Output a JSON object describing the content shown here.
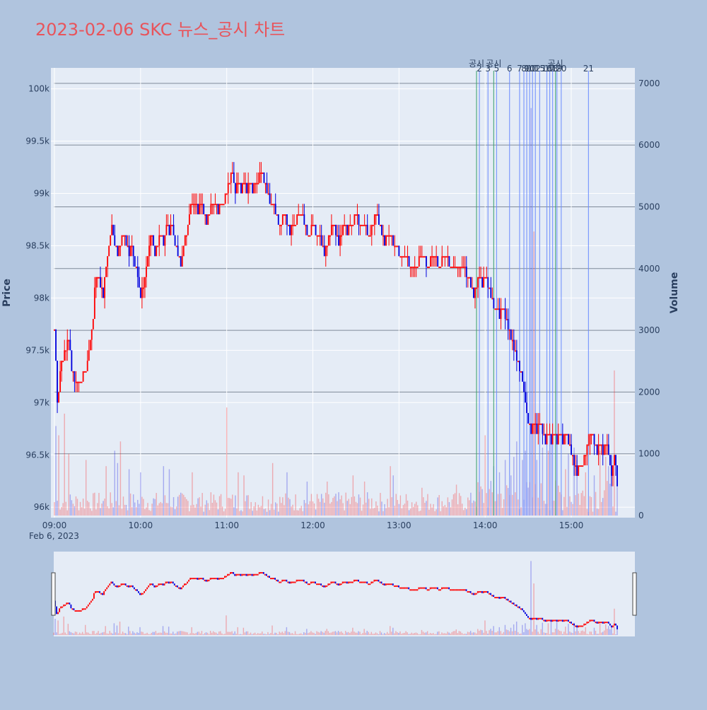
{
  "title": "2023-02-06 SKC 뉴스_공시 차트",
  "colors": {
    "background": "#b0c4de",
    "plot_bg": "#e5ecf6",
    "title": "#e8545b",
    "up": "#ff0000",
    "down": "#0000dd",
    "marker_num": "#6b8cff",
    "marker_disclosure": "#3aa06e",
    "axis_text": "#2a3f5f"
  },
  "chart_data": {
    "type": "candlestick",
    "title": "2023-02-06 SKC 뉴스_공시 차트",
    "ylabel": "Price",
    "y2label": "Volume",
    "xlabel_date": "Feb 6, 2023",
    "price_axis": {
      "range": [
        95900,
        100200
      ],
      "tick_values": [
        96000,
        96500,
        97000,
        97500,
        98000,
        98500,
        99000,
        99500,
        100000
      ],
      "tick_labels": [
        "96k",
        "96.5k",
        "97k",
        "97.5k",
        "98k",
        "98.5k",
        "99k",
        "99.5k",
        "100k"
      ]
    },
    "volume_axis": {
      "range": [
        0,
        7250
      ],
      "tick_values": [
        0,
        1000,
        2000,
        3000,
        4000,
        5000,
        6000,
        7000
      ],
      "tick_labels": [
        "0",
        "1000",
        "2000",
        "3000",
        "4000",
        "5000",
        "6000",
        "7000"
      ]
    },
    "time_axis": {
      "tick_labels": [
        "09:00",
        "10:00",
        "11:00",
        "12:00",
        "13:00",
        "14:00",
        "15:00"
      ],
      "tick_minutes": [
        0,
        60,
        120,
        180,
        240,
        300,
        360
      ],
      "end_minute": 392
    },
    "price_path": [
      [
        0,
        97700
      ],
      [
        2,
        97000
      ],
      [
        5,
        97400
      ],
      [
        10,
        97600
      ],
      [
        12,
        97300
      ],
      [
        14,
        97200
      ],
      [
        18,
        97200
      ],
      [
        22,
        97300
      ],
      [
        25,
        97600
      ],
      [
        27,
        97800
      ],
      [
        28,
        98100
      ],
      [
        30,
        98200
      ],
      [
        32,
        98100
      ],
      [
        34,
        98000
      ],
      [
        36,
        98300
      ],
      [
        38,
        98500
      ],
      [
        40,
        98700
      ],
      [
        42,
        98500
      ],
      [
        44,
        98400
      ],
      [
        46,
        98500
      ],
      [
        48,
        98600
      ],
      [
        50,
        98500
      ],
      [
        52,
        98400
      ],
      [
        54,
        98500
      ],
      [
        56,
        98300
      ],
      [
        58,
        98200
      ],
      [
        60,
        98000
      ],
      [
        62,
        98100
      ],
      [
        64,
        98300
      ],
      [
        66,
        98500
      ],
      [
        68,
        98600
      ],
      [
        70,
        98400
      ],
      [
        72,
        98500
      ],
      [
        74,
        98600
      ],
      [
        76,
        98500
      ],
      [
        78,
        98700
      ],
      [
        80,
        98600
      ],
      [
        82,
        98700
      ],
      [
        84,
        98500
      ],
      [
        86,
        98400
      ],
      [
        88,
        98300
      ],
      [
        90,
        98500
      ],
      [
        92,
        98600
      ],
      [
        94,
        98800
      ],
      [
        96,
        98900
      ],
      [
        98,
        98900
      ],
      [
        100,
        98800
      ],
      [
        102,
        98900
      ],
      [
        104,
        98800
      ],
      [
        106,
        98700
      ],
      [
        108,
        98800
      ],
      [
        110,
        98900
      ],
      [
        112,
        98900
      ],
      [
        114,
        98800
      ],
      [
        116,
        98900
      ],
      [
        118,
        98900
      ],
      [
        120,
        99000
      ],
      [
        122,
        99100
      ],
      [
        124,
        99200
      ],
      [
        126,
        99000
      ],
      [
        128,
        99100
      ],
      [
        130,
        99000
      ],
      [
        132,
        99100
      ],
      [
        134,
        99000
      ],
      [
        136,
        99100
      ],
      [
        138,
        99000
      ],
      [
        140,
        99100
      ],
      [
        142,
        99100
      ],
      [
        144,
        99200
      ],
      [
        146,
        99100
      ],
      [
        148,
        99000
      ],
      [
        150,
        98900
      ],
      [
        152,
        98900
      ],
      [
        154,
        98800
      ],
      [
        156,
        98700
      ],
      [
        158,
        98700
      ],
      [
        160,
        98800
      ],
      [
        162,
        98700
      ],
      [
        164,
        98600
      ],
      [
        166,
        98700
      ],
      [
        168,
        98700
      ],
      [
        170,
        98800
      ],
      [
        172,
        98800
      ],
      [
        174,
        98700
      ],
      [
        176,
        98600
      ],
      [
        178,
        98600
      ],
      [
        180,
        98700
      ],
      [
        182,
        98600
      ],
      [
        184,
        98600
      ],
      [
        186,
        98500
      ],
      [
        188,
        98400
      ],
      [
        190,
        98500
      ],
      [
        192,
        98600
      ],
      [
        194,
        98700
      ],
      [
        196,
        98600
      ],
      [
        198,
        98500
      ],
      [
        200,
        98600
      ],
      [
        202,
        98700
      ],
      [
        204,
        98600
      ],
      [
        206,
        98700
      ],
      [
        208,
        98700
      ],
      [
        210,
        98800
      ],
      [
        212,
        98700
      ],
      [
        214,
        98700
      ],
      [
        216,
        98700
      ],
      [
        218,
        98600
      ],
      [
        220,
        98600
      ],
      [
        222,
        98700
      ],
      [
        224,
        98800
      ],
      [
        226,
        98700
      ],
      [
        228,
        98600
      ],
      [
        230,
        98500
      ],
      [
        232,
        98600
      ],
      [
        234,
        98600
      ],
      [
        236,
        98500
      ],
      [
        238,
        98500
      ],
      [
        240,
        98400
      ],
      [
        244,
        98400
      ],
      [
        248,
        98300
      ],
      [
        252,
        98300
      ],
      [
        256,
        98400
      ],
      [
        260,
        98300
      ],
      [
        264,
        98400
      ],
      [
        268,
        98300
      ],
      [
        272,
        98400
      ],
      [
        276,
        98300
      ],
      [
        280,
        98300
      ],
      [
        284,
        98300
      ],
      [
        288,
        98200
      ],
      [
        290,
        98100
      ],
      [
        292,
        98000
      ],
      [
        294,
        98100
      ],
      [
        296,
        98200
      ],
      [
        298,
        98100
      ],
      [
        300,
        98200
      ],
      [
        302,
        98100
      ],
      [
        304,
        98000
      ],
      [
        306,
        97900
      ],
      [
        308,
        97900
      ],
      [
        310,
        97800
      ],
      [
        312,
        97900
      ],
      [
        314,
        97800
      ],
      [
        316,
        97700
      ],
      [
        318,
        97600
      ],
      [
        320,
        97500
      ],
      [
        322,
        97400
      ],
      [
        324,
        97300
      ],
      [
        326,
        97200
      ],
      [
        328,
        97000
      ],
      [
        330,
        96800
      ],
      [
        332,
        96700
      ],
      [
        334,
        96800
      ],
      [
        336,
        96700
      ],
      [
        338,
        96800
      ],
      [
        340,
        96700
      ],
      [
        342,
        96600
      ],
      [
        344,
        96700
      ],
      [
        346,
        96600
      ],
      [
        348,
        96700
      ],
      [
        350,
        96600
      ],
      [
        352,
        96700
      ],
      [
        354,
        96600
      ],
      [
        356,
        96700
      ],
      [
        358,
        96600
      ],
      [
        360,
        96500
      ],
      [
        362,
        96400
      ],
      [
        364,
        96300
      ],
      [
        366,
        96400
      ],
      [
        368,
        96400
      ],
      [
        370,
        96500
      ],
      [
        372,
        96600
      ],
      [
        374,
        96700
      ],
      [
        376,
        96600
      ],
      [
        378,
        96500
      ],
      [
        380,
        96600
      ],
      [
        382,
        96500
      ],
      [
        384,
        96600
      ],
      [
        386,
        96500
      ],
      [
        388,
        96300
      ],
      [
        390,
        96500
      ],
      [
        392,
        96200
      ]
    ],
    "volume_spikes": [
      [
        1,
        1450
      ],
      [
        3,
        1300
      ],
      [
        7,
        1650
      ],
      [
        10,
        1000
      ],
      [
        22,
        900
      ],
      [
        36,
        800
      ],
      [
        42,
        1050
      ],
      [
        44,
        850
      ],
      [
        46,
        1200
      ],
      [
        52,
        750
      ],
      [
        60,
        700
      ],
      [
        76,
        800
      ],
      [
        80,
        750
      ],
      [
        96,
        700
      ],
      [
        120,
        1750
      ],
      [
        128,
        700
      ],
      [
        132,
        650
      ],
      [
        152,
        850
      ],
      [
        162,
        700
      ],
      [
        176,
        550
      ],
      [
        190,
        550
      ],
      [
        208,
        650
      ],
      [
        216,
        550
      ],
      [
        234,
        800
      ],
      [
        236,
        650
      ],
      [
        256,
        450
      ],
      [
        280,
        500
      ],
      [
        300,
        1300
      ],
      [
        306,
        800
      ],
      [
        310,
        700
      ],
      [
        314,
        900
      ],
      [
        318,
        650
      ],
      [
        320,
        950
      ],
      [
        322,
        1200
      ],
      [
        326,
        900
      ],
      [
        328,
        1050
      ],
      [
        332,
        6600
      ],
      [
        334,
        4600
      ],
      [
        336,
        900
      ],
      [
        340,
        1100
      ],
      [
        344,
        1050
      ],
      [
        346,
        1200
      ],
      [
        350,
        1150
      ],
      [
        356,
        750
      ],
      [
        358,
        1000
      ],
      [
        362,
        1100
      ],
      [
        364,
        900
      ],
      [
        370,
        700
      ],
      [
        376,
        650
      ],
      [
        380,
        1050
      ],
      [
        384,
        950
      ],
      [
        386,
        800
      ],
      [
        388,
        700
      ],
      [
        390,
        2350
      ]
    ],
    "markers": [
      {
        "label": "공시",
        "minute": 294,
        "kind": "disclosure"
      },
      {
        "label": "2",
        "minute": 296,
        "kind": "news"
      },
      {
        "label": "3",
        "minute": 302,
        "kind": "news"
      },
      {
        "label": "공시",
        "minute": 306,
        "kind": "disclosure"
      },
      {
        "label": "5",
        "minute": 308,
        "kind": "news"
      },
      {
        "label": "6",
        "minute": 317,
        "kind": "news"
      },
      {
        "label": "7",
        "minute": 324,
        "kind": "news"
      },
      {
        "label": "8",
        "minute": 327,
        "kind": "news"
      },
      {
        "label": "9",
        "minute": 329,
        "kind": "news"
      },
      {
        "label": "10",
        "minute": 331,
        "kind": "news"
      },
      {
        "label": "11",
        "minute": 333,
        "kind": "news"
      },
      {
        "label": "12",
        "minute": 335,
        "kind": "news"
      },
      {
        "label": "15",
        "minute": 338,
        "kind": "news"
      },
      {
        "label": "16",
        "minute": 343,
        "kind": "news"
      },
      {
        "label": "17",
        "minute": 345,
        "kind": "news"
      },
      {
        "label": "공시",
        "minute": 349,
        "kind": "disclosure"
      },
      {
        "label": "18",
        "minute": 347,
        "kind": "news"
      },
      {
        "label": "19",
        "minute": 350,
        "kind": "news"
      },
      {
        "label": "20",
        "minute": 353,
        "kind": "news"
      },
      {
        "label": "21",
        "minute": 372,
        "kind": "news"
      }
    ]
  }
}
